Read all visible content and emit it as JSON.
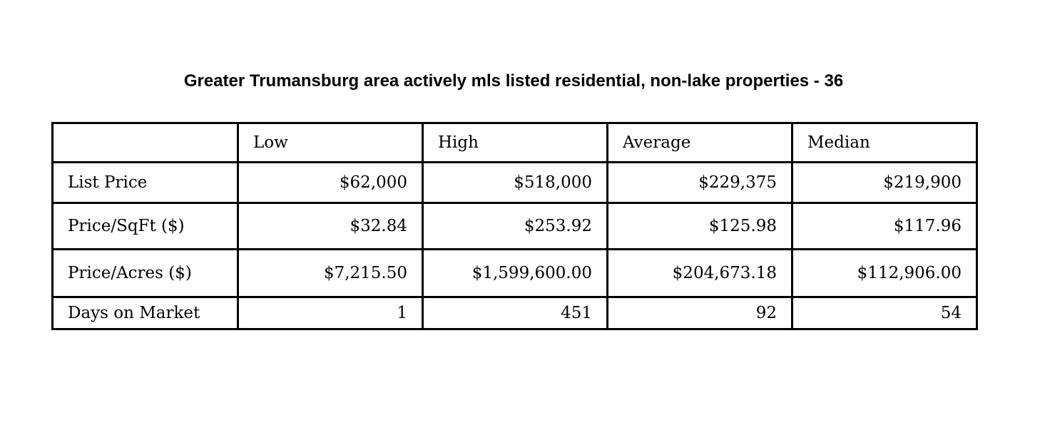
{
  "title": "Greater Trumansburg area actively mls listed residential, non-lake properties - 36",
  "table": {
    "headers": [
      "",
      "Low",
      "High",
      "Average",
      "Median"
    ],
    "rows": [
      {
        "label": "List Price",
        "cells": [
          "$62,000",
          "$518,000",
          "$229,375",
          "$219,900"
        ]
      },
      {
        "label": "Price/SqFt ($)",
        "cells": [
          "$32.84",
          "$253.92",
          "$125.98",
          "$117.96"
        ]
      },
      {
        "label": "Price/Acres ($)",
        "cells": [
          "$7,215.50",
          "$1,599,600.00",
          "$204,673.18",
          "$112,906.00"
        ]
      },
      {
        "label": "Days on Market",
        "cells": [
          "1",
          "451",
          "92",
          "54"
        ]
      }
    ]
  }
}
